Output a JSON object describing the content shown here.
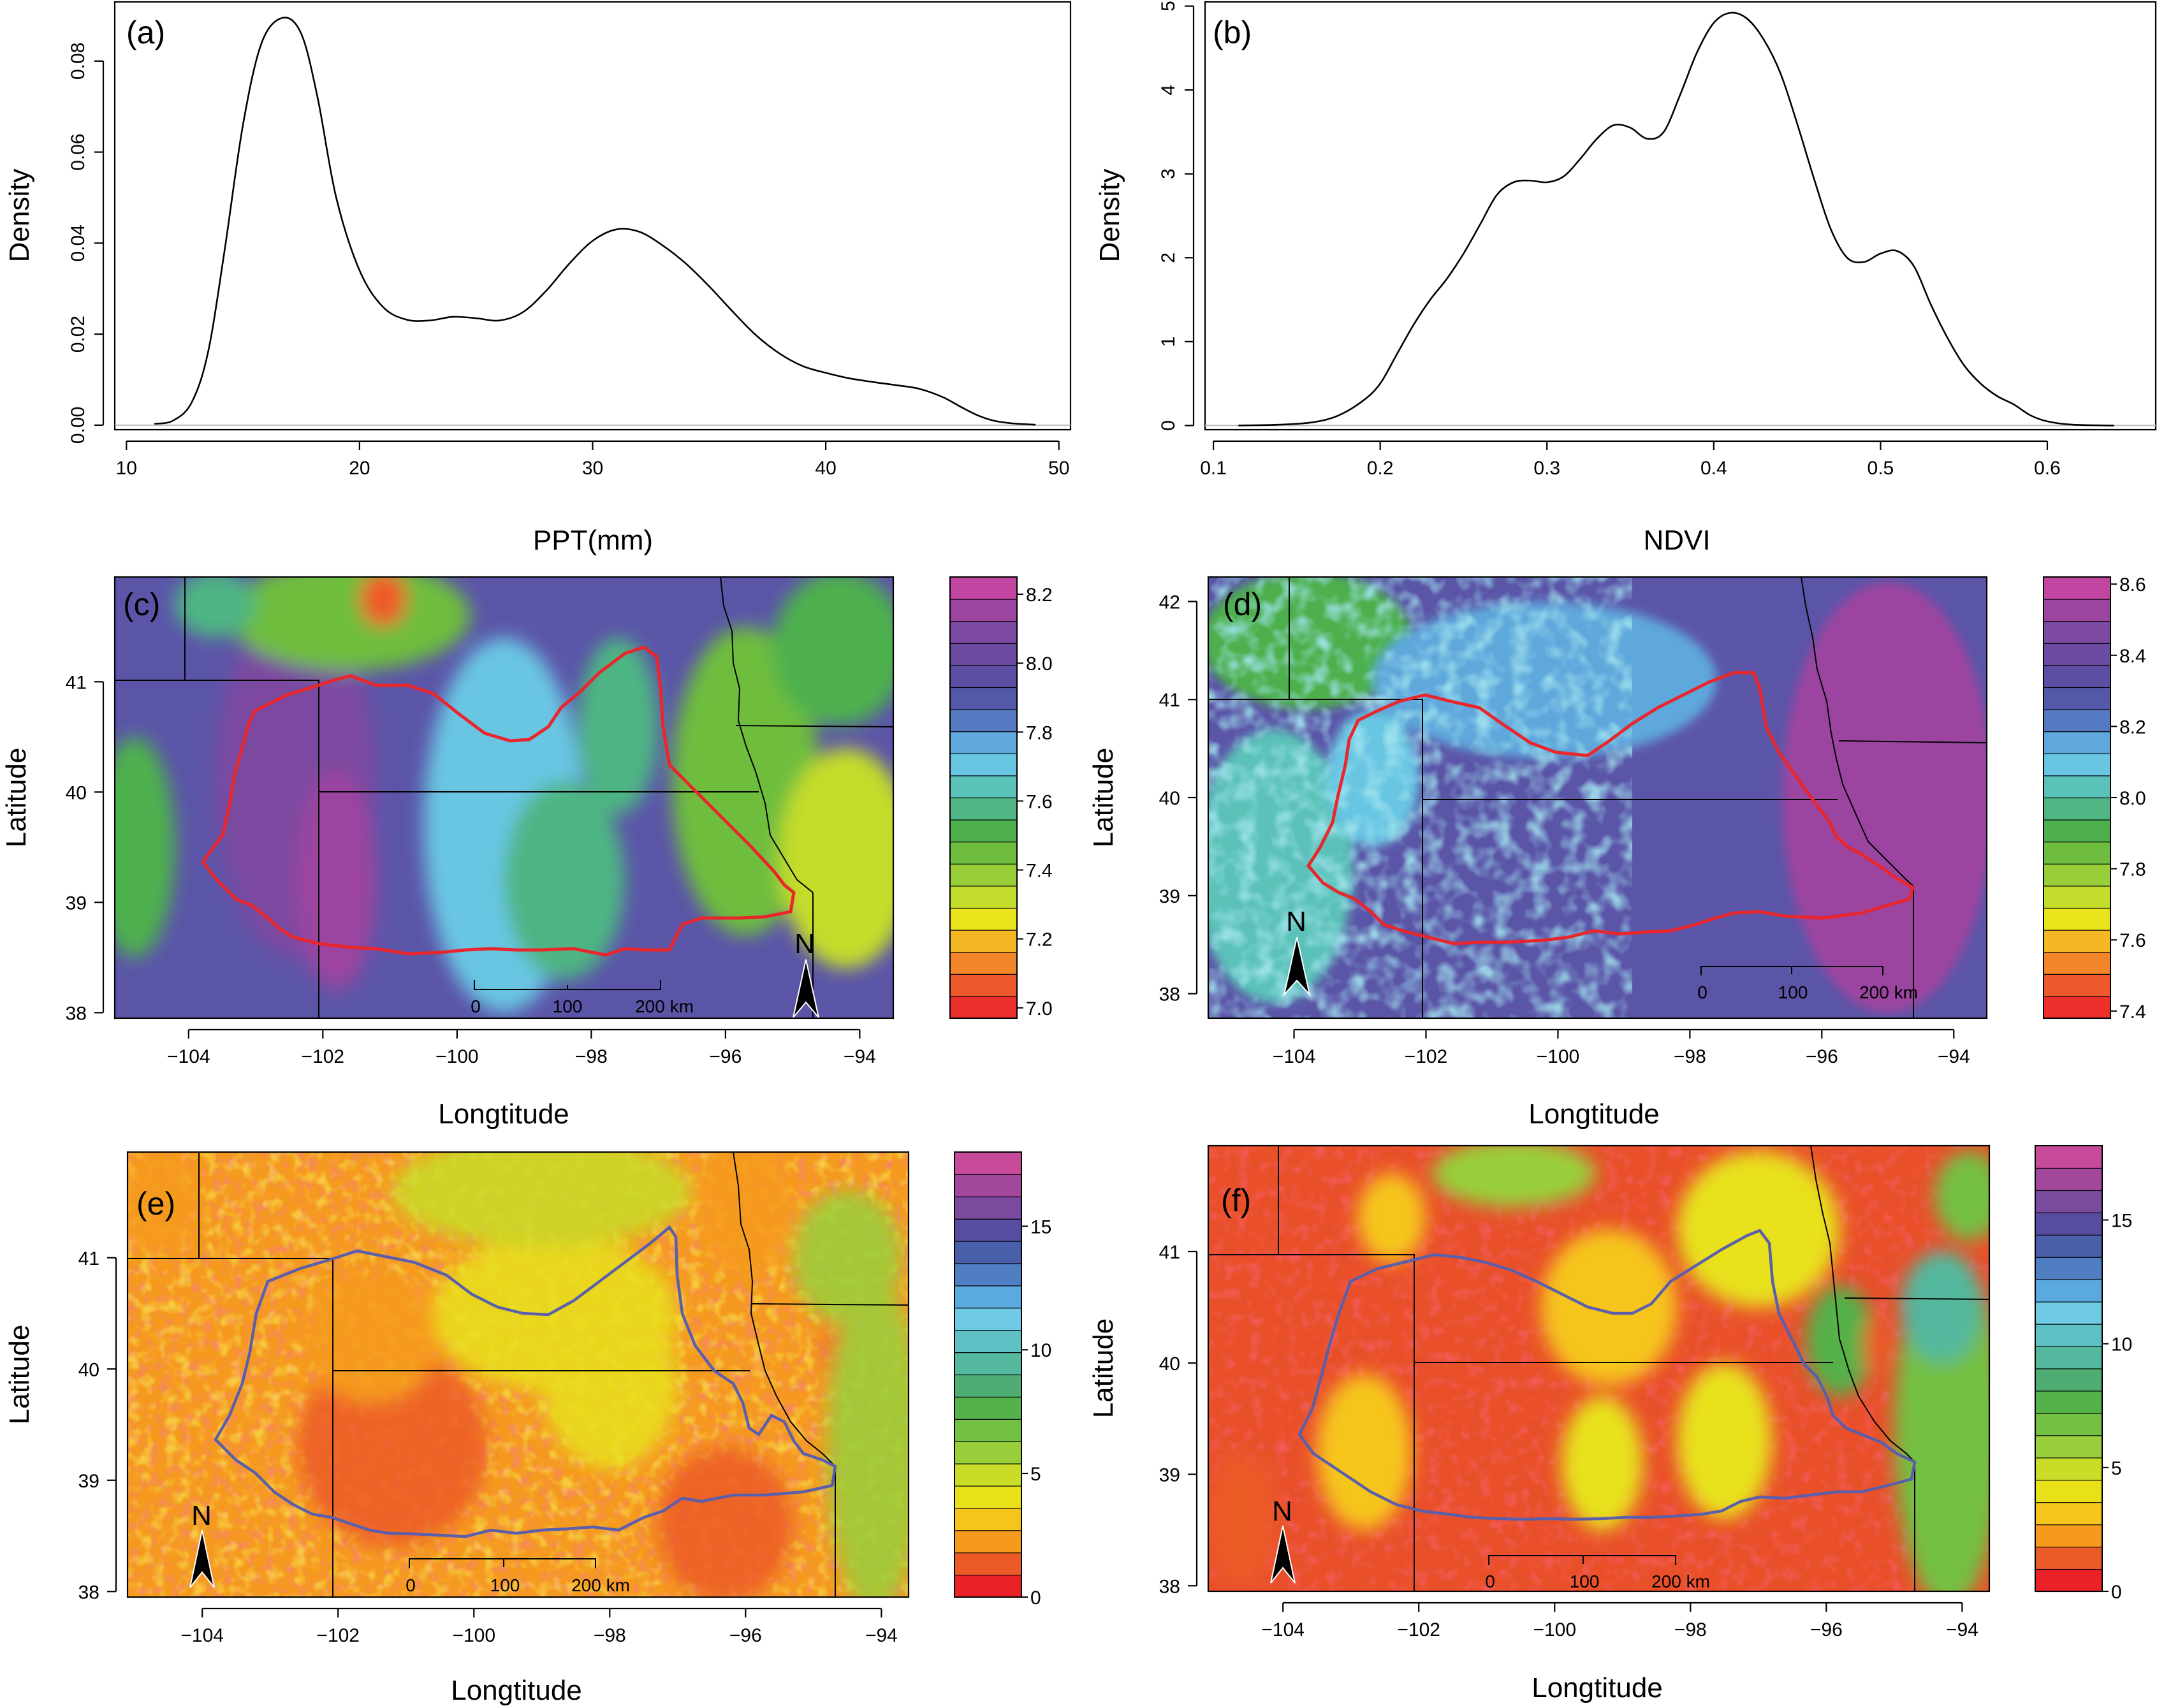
{
  "chart_data": [
    {
      "id": "a",
      "type": "line",
      "panel_label": "(a)",
      "xlabel": "PPT(mm)",
      "ylabel": "Density",
      "xlim": [
        9.5,
        50.5
      ],
      "ylim": [
        -0.001,
        0.093
      ],
      "x_ticks": [
        10,
        20,
        30,
        40,
        50
      ],
      "y_ticks": [
        0.0,
        0.02,
        0.04,
        0.06,
        0.08
      ],
      "x_tick_labels": [
        "10",
        "20",
        "30",
        "40",
        "50"
      ],
      "y_tick_labels": [
        "0.00",
        "0.02",
        "0.04",
        "0.06",
        "0.08"
      ],
      "series": [
        {
          "name": "density",
          "x": [
            11.2,
            12,
            12.8,
            13.5,
            14.2,
            15,
            15.8,
            16.7,
            17.5,
            18.2,
            19,
            20,
            21,
            22,
            23,
            24,
            25,
            26,
            27,
            28,
            29,
            30,
            31,
            32,
            33,
            34,
            35,
            36,
            37,
            38,
            39,
            40,
            41,
            42,
            43,
            44,
            45,
            45.8,
            46.5,
            47.2,
            48,
            49
          ],
          "y": [
            0.0003,
            0.001,
            0.005,
            0.016,
            0.038,
            0.066,
            0.084,
            0.0895,
            0.086,
            0.072,
            0.05,
            0.034,
            0.026,
            0.0232,
            0.023,
            0.0238,
            0.0235,
            0.023,
            0.0248,
            0.0295,
            0.0355,
            0.0405,
            0.043,
            0.0425,
            0.0395,
            0.0355,
            0.0305,
            0.025,
            0.0198,
            0.0158,
            0.013,
            0.0115,
            0.0103,
            0.0095,
            0.0088,
            0.008,
            0.0062,
            0.004,
            0.0022,
            0.001,
            0.0004,
            0.0001
          ]
        }
      ]
    },
    {
      "id": "b",
      "type": "line",
      "panel_label": "(b)",
      "xlabel": "NDVI",
      "ylabel": "Density",
      "xlim": [
        0.095,
        0.665
      ],
      "ylim": [
        -0.05,
        5.05
      ],
      "x_ticks": [
        0.1,
        0.2,
        0.3,
        0.4,
        0.5,
        0.6
      ],
      "y_ticks": [
        0,
        1,
        2,
        3,
        4,
        5
      ],
      "x_tick_labels": [
        "0.1",
        "0.2",
        "0.3",
        "0.4",
        "0.5",
        "0.6"
      ],
      "y_tick_labels": [
        "0",
        "1",
        "2",
        "3",
        "4",
        "5"
      ],
      "series": [
        {
          "name": "density",
          "x": [
            0.115,
            0.14,
            0.16,
            0.175,
            0.19,
            0.2,
            0.21,
            0.22,
            0.23,
            0.24,
            0.25,
            0.26,
            0.27,
            0.28,
            0.29,
            0.3,
            0.31,
            0.32,
            0.33,
            0.34,
            0.35,
            0.36,
            0.37,
            0.38,
            0.39,
            0.4,
            0.41,
            0.42,
            0.43,
            0.44,
            0.45,
            0.46,
            0.47,
            0.48,
            0.49,
            0.5,
            0.51,
            0.52,
            0.53,
            0.54,
            0.55,
            0.56,
            0.57,
            0.58,
            0.59,
            0.6,
            0.615,
            0.64
          ],
          "y": [
            0,
            0.01,
            0.04,
            0.12,
            0.3,
            0.5,
            0.85,
            1.2,
            1.5,
            1.75,
            2.05,
            2.4,
            2.75,
            2.9,
            2.92,
            2.9,
            2.97,
            3.18,
            3.42,
            3.58,
            3.55,
            3.42,
            3.5,
            3.95,
            4.45,
            4.8,
            4.92,
            4.85,
            4.6,
            4.2,
            3.6,
            2.95,
            2.35,
            2.0,
            1.95,
            2.05,
            2.08,
            1.9,
            1.45,
            1.05,
            0.72,
            0.5,
            0.35,
            0.25,
            0.12,
            0.05,
            0.01,
            0
          ]
        }
      ]
    },
    {
      "id": "c",
      "type": "heatmap",
      "panel_label": "(c)",
      "xlabel": "Longtitude",
      "ylabel": "Latitude",
      "xlim": [
        -105.1,
        -93.5
      ],
      "ylim": [
        37.95,
        41.95
      ],
      "x_ticks": [
        -104,
        -102,
        -100,
        -98,
        -96,
        -94
      ],
      "y_ticks": [
        38,
        39,
        40,
        41
      ],
      "x_tick_labels": [
        "−104",
        "−102",
        "−100",
        "−98",
        "−96",
        "−94"
      ],
      "y_tick_labels": [
        "38",
        "39",
        "40",
        "41"
      ],
      "colorbar_ticks": [
        "7.0",
        "7.2",
        "7.4",
        "7.6",
        "7.8",
        "8.0",
        "8.2"
      ],
      "colorbar_range": [
        6.97,
        8.25
      ],
      "basin_color": "#e8262c",
      "scale_labels": [
        "0",
        "100",
        "200 km"
      ],
      "north_label": "N",
      "background_color": "#5b55a8",
      "blobs": [
        {
          "lon": -102.4,
          "lat": 40.1,
          "rx": 1.2,
          "ry": 1.6,
          "value": 8.12
        },
        {
          "lon": -101.8,
          "lat": 39.2,
          "rx": 0.6,
          "ry": 1.0,
          "value": 8.15
        },
        {
          "lon": -99.3,
          "lat": 39.7,
          "rx": 1.2,
          "ry": 1.7,
          "value": 7.72
        },
        {
          "lon": -98.4,
          "lat": 39.2,
          "rx": 0.9,
          "ry": 0.9,
          "value": 7.55
        },
        {
          "lon": -97.6,
          "lat": 40.6,
          "rx": 0.6,
          "ry": 0.8,
          "value": 7.6
        },
        {
          "lon": -95.7,
          "lat": 40.1,
          "rx": 1.1,
          "ry": 1.4,
          "value": 7.45
        },
        {
          "lon": -94.2,
          "lat": 39.4,
          "rx": 1.0,
          "ry": 1.0,
          "value": 7.3
        },
        {
          "lon": -101.6,
          "lat": 41.6,
          "rx": 1.8,
          "ry": 0.5,
          "value": 7.45
        },
        {
          "lon": -101.1,
          "lat": 41.75,
          "rx": 0.35,
          "ry": 0.25,
          "value": 7.05
        },
        {
          "lon": -94.3,
          "lat": 41.3,
          "rx": 1.0,
          "ry": 0.7,
          "value": 7.5
        },
        {
          "lon": -104.8,
          "lat": 39.5,
          "rx": 0.6,
          "ry": 1.0,
          "value": 7.5
        },
        {
          "lon": -103.6,
          "lat": 41.7,
          "rx": 0.6,
          "ry": 0.3,
          "value": 7.6
        }
      ]
    },
    {
      "id": "d",
      "type": "heatmap",
      "panel_label": "(d)",
      "xlabel": "Longtitude",
      "ylabel": "Latitude",
      "xlim": [
        -105.3,
        -93.5
      ],
      "ylim": [
        37.75,
        42.25
      ],
      "x_ticks": [
        -104,
        -102,
        -100,
        -98,
        -96,
        -94
      ],
      "y_ticks": [
        38,
        39,
        40,
        41,
        42
      ],
      "x_tick_labels": [
        "−104",
        "−102",
        "−100",
        "−98",
        "−96",
        "−94"
      ],
      "y_tick_labels": [
        "38",
        "39",
        "40",
        "41",
        "42"
      ],
      "colorbar_ticks": [
        "7.4",
        "7.6",
        "7.8",
        "8.0",
        "8.2",
        "8.4",
        "8.6"
      ],
      "colorbar_range": [
        7.38,
        8.62
      ],
      "basin_color": "#e8262c",
      "scale_labels": [
        "0",
        "100",
        "200 km"
      ],
      "north_label": "N",
      "background_color": "#5b55a8",
      "blobs": [
        {
          "lon": -103.8,
          "lat": 41.6,
          "rx": 1.6,
          "ry": 0.7,
          "value": 7.9
        },
        {
          "lon": -100.2,
          "lat": 41.2,
          "rx": 2.6,
          "ry": 0.8,
          "value": 8.15
        },
        {
          "lon": -104.3,
          "lat": 39.3,
          "rx": 1.2,
          "ry": 1.4,
          "value": 8.05
        },
        {
          "lon": -102.8,
          "lat": 40.2,
          "rx": 0.7,
          "ry": 0.7,
          "value": 8.1
        },
        {
          "lon": -95.0,
          "lat": 40.0,
          "rx": 1.6,
          "ry": 2.2,
          "value": 8.5
        }
      ]
    },
    {
      "id": "e",
      "type": "heatmap",
      "panel_label": "(e)",
      "xlabel": "Longtitude",
      "ylabel": "Latitude",
      "xlim": [
        -105.1,
        -93.6
      ],
      "ylim": [
        37.95,
        41.95
      ],
      "x_ticks": [
        -104,
        -102,
        -100,
        -98,
        -96,
        -94
      ],
      "y_ticks": [
        38,
        39,
        40,
        41
      ],
      "x_tick_labels": [
        "−104",
        "−102",
        "−100",
        "−98",
        "−96",
        "−94"
      ],
      "y_tick_labels": [
        "38",
        "39",
        "40",
        "41"
      ],
      "colorbar_ticks": [
        "0",
        "5",
        "10",
        "15"
      ],
      "colorbar_range": [
        0,
        18
      ],
      "basin_color": "#5a5fac",
      "scale_labels": [
        "0",
        "100",
        "200 km"
      ],
      "north_label": "N",
      "background_color": "#f59a1e",
      "blobs": [
        {
          "lon": -101.2,
          "lat": 39.3,
          "rx": 1.4,
          "ry": 0.9,
          "value": 1.5
        },
        {
          "lon": -101.5,
          "lat": 40.3,
          "rx": 1.0,
          "ry": 0.6,
          "value": 1.8
        },
        {
          "lon": -96.3,
          "lat": 38.6,
          "rx": 1.0,
          "ry": 0.7,
          "value": 1.6
        },
        {
          "lon": -96.0,
          "lat": 41.5,
          "rx": 0.7,
          "ry": 0.7,
          "value": 1.8
        },
        {
          "lon": -94.6,
          "lat": 40.15,
          "rx": 0.25,
          "ry": 0.35,
          "value": 1.5
        },
        {
          "lon": -98.8,
          "lat": 40.5,
          "rx": 1.8,
          "ry": 0.7,
          "value": 4.3
        },
        {
          "lon": -99.0,
          "lat": 41.6,
          "rx": 2.2,
          "ry": 0.5,
          "value": 4.5
        },
        {
          "lon": -98.0,
          "lat": 39.9,
          "rx": 1.0,
          "ry": 0.8,
          "value": 4.2
        },
        {
          "lon": -94.1,
          "lat": 39.3,
          "rx": 0.7,
          "ry": 1.5,
          "value": 6.0
        },
        {
          "lon": -94.5,
          "lat": 41.0,
          "rx": 0.8,
          "ry": 0.6,
          "value": 5.5
        },
        {
          "lon": -104.6,
          "lat": 41.5,
          "rx": 0.6,
          "ry": 0.5,
          "value": 1.8
        }
      ]
    },
    {
      "id": "f",
      "type": "heatmap",
      "panel_label": "(f)",
      "xlabel": "Longtitude",
      "ylabel": "Latitude",
      "xlim": [
        -105.1,
        -93.6
      ],
      "ylim": [
        37.95,
        41.95
      ],
      "x_ticks": [
        -104,
        -102,
        -100,
        -98,
        -96,
        -94
      ],
      "y_ticks": [
        38,
        39,
        40,
        41
      ],
      "x_tick_labels": [
        "−104",
        "−102",
        "−100",
        "−98",
        "−96",
        "−94"
      ],
      "y_tick_labels": [
        "38",
        "39",
        "40",
        "41"
      ],
      "colorbar_ticks": [
        "0",
        "5",
        "10",
        "15"
      ],
      "colorbar_range": [
        0,
        18
      ],
      "basin_color": "#5a5fac",
      "scale_labels": [
        "0",
        "100",
        "200 km"
      ],
      "north_label": "N",
      "background_color": "#e9502a",
      "blobs": [
        {
          "lon": -99.2,
          "lat": 40.5,
          "rx": 1.0,
          "ry": 0.7,
          "value": 3.5
        },
        {
          "lon": -97.5,
          "lat": 39.3,
          "rx": 0.7,
          "ry": 0.7,
          "value": 4.2
        },
        {
          "lon": -99.3,
          "lat": 39.1,
          "rx": 0.6,
          "ry": 0.6,
          "value": 4.0
        },
        {
          "lon": -97.0,
          "lat": 41.2,
          "rx": 1.2,
          "ry": 0.7,
          "value": 3.6
        },
        {
          "lon": -100.6,
          "lat": 41.7,
          "rx": 1.2,
          "ry": 0.3,
          "value": 5.5
        },
        {
          "lon": -102.8,
          "lat": 39.2,
          "rx": 0.7,
          "ry": 0.7,
          "value": 2.8
        },
        {
          "lon": -94.2,
          "lat": 39.4,
          "rx": 0.8,
          "ry": 1.6,
          "value": 7.0
        },
        {
          "lon": -94.3,
          "lat": 40.5,
          "rx": 0.6,
          "ry": 0.5,
          "value": 9.5
        },
        {
          "lon": -93.9,
          "lat": 41.5,
          "rx": 0.5,
          "ry": 0.4,
          "value": 6.5
        },
        {
          "lon": -95.8,
          "lat": 40.2,
          "rx": 0.5,
          "ry": 0.5,
          "value": 8.0
        },
        {
          "lon": -95.3,
          "lat": 40.15,
          "rx": 0.15,
          "ry": 0.25,
          "value": 1.5
        },
        {
          "lon": -104.6,
          "lat": 38.6,
          "rx": 0.5,
          "ry": 0.6,
          "value": 1.5
        },
        {
          "lon": -102.4,
          "lat": 41.3,
          "rx": 0.5,
          "ry": 0.4,
          "value": 3.0
        }
      ]
    }
  ]
}
